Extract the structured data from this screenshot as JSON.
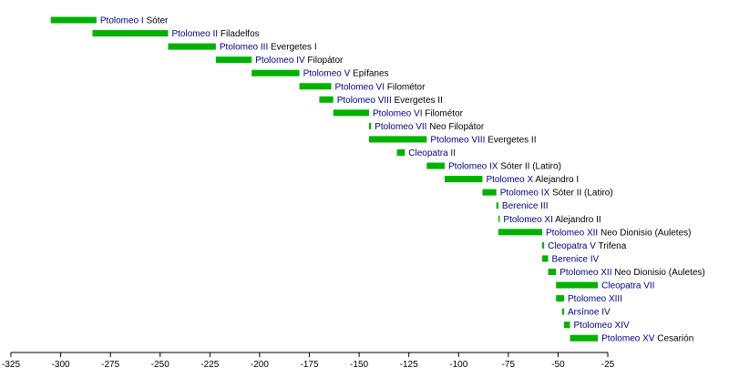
{
  "chart_data": {
    "type": "bar",
    "subtype": "horizontal-timeline",
    "title": "",
    "xlabel": "",
    "ylabel": "",
    "xlim": [
      -325,
      -25
    ],
    "xticks": [
      -325,
      -300,
      -275,
      -250,
      -225,
      -200,
      -175,
      -150,
      -125,
      -100,
      -75,
      -50,
      -25
    ],
    "grid": false,
    "bar_color": "#00b200",
    "link_color": "#00008b",
    "series": [
      {
        "name_link": "Ptolomeo I",
        "name_rest": " Sóter",
        "start": -305,
        "end": -282
      },
      {
        "name_link": "Ptolomeo II",
        "name_rest": " Filadelfos",
        "start": -284,
        "end": -246
      },
      {
        "name_link": "Ptolomeo III",
        "name_rest": " Evergetes I",
        "start": -246,
        "end": -222
      },
      {
        "name_link": "Ptolomeo IV",
        "name_rest": " Filopátor",
        "start": -222,
        "end": -204
      },
      {
        "name_link": "Ptolomeo V",
        "name_rest": " Epífanes",
        "start": -204,
        "end": -180
      },
      {
        "name_link": "Ptolomeo VI",
        "name_rest": " Filométor",
        "start": -180,
        "end": -164
      },
      {
        "name_link": "Ptolomeo VIII",
        "name_rest": " Evergetes II",
        "start": -170,
        "end": -163
      },
      {
        "name_link": "Ptolomeo VI",
        "name_rest": " Filométor",
        "start": -163,
        "end": -145
      },
      {
        "name_link": "Ptolomeo VII",
        "name_rest": " Neo Filopátor",
        "start": -145,
        "end": -144
      },
      {
        "name_link": "Ptolomeo VIII",
        "name_rest": " Evergetes II",
        "start": -145,
        "end": -116
      },
      {
        "name_link": "Cleopatra II",
        "name_rest": "",
        "start": -131,
        "end": -127
      },
      {
        "name_link": "Ptolomeo IX",
        "name_rest": " Sóter II (Latiro)",
        "start": -116,
        "end": -107
      },
      {
        "name_link": "Ptolomeo X",
        "name_rest": " Alejandro I",
        "start": -107,
        "end": -88
      },
      {
        "name_link": "Ptolomeo IX",
        "name_rest": " Sóter II (Latiro)",
        "start": -88,
        "end": -81
      },
      {
        "name_link": "Berenice III",
        "name_rest": "",
        "start": -81,
        "end": -80
      },
      {
        "name_link": "Ptolomeo XI",
        "name_rest": " Alejandro II",
        "start": -80,
        "end": -80
      },
      {
        "name_link": "Ptolomeo XII",
        "name_rest": " Neo Dionisio (Auletes)",
        "start": -80,
        "end": -58
      },
      {
        "name_link": "Cleopatra V",
        "name_rest": " Trifena",
        "start": -58,
        "end": -57
      },
      {
        "name_link": "Berenice IV",
        "name_rest": "",
        "start": -58,
        "end": -55
      },
      {
        "name_link": "Ptolomeo XII",
        "name_rest": " Neo Dionisio (Auletes)",
        "start": -55,
        "end": -51
      },
      {
        "name_link": "Cleopatra VII",
        "name_rest": "",
        "start": -51,
        "end": -30
      },
      {
        "name_link": "Ptolomeo XIII",
        "name_rest": "",
        "start": -51,
        "end": -47
      },
      {
        "name_link": "Arsínoe IV",
        "name_rest": "",
        "start": -48,
        "end": -47
      },
      {
        "name_link": "Ptolomeo XIV",
        "name_rest": "",
        "start": -47,
        "end": -44
      },
      {
        "name_link": "Ptolomeo XV",
        "name_rest": " Cesarión",
        "start": -44,
        "end": -30
      }
    ]
  }
}
